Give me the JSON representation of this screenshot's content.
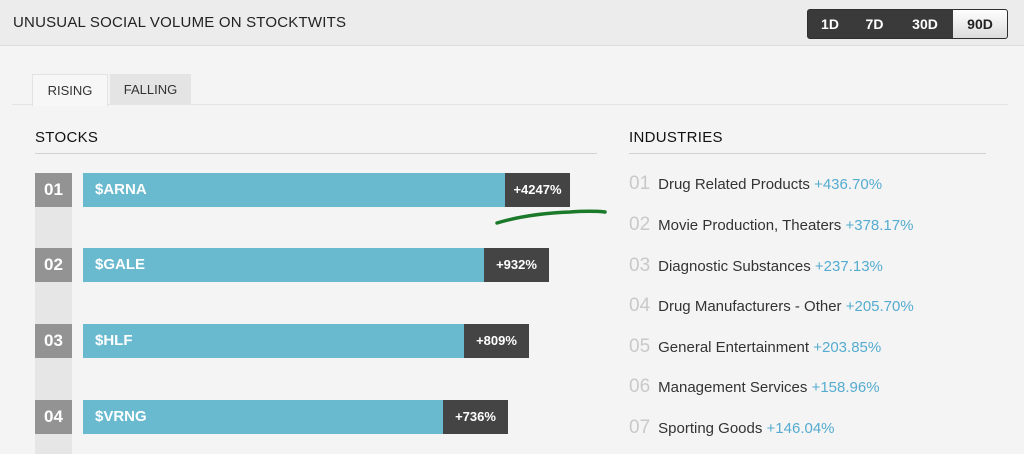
{
  "header": {
    "title": "UNUSUAL SOCIAL VOLUME ON STOCKTWITS",
    "ranges": [
      "1D",
      "7D",
      "30D",
      "90D"
    ],
    "selected_range": "90D"
  },
  "tabs": [
    "RISING",
    "FALLING"
  ],
  "active_tab": "RISING",
  "stocks": {
    "title": "STOCKS",
    "items": [
      {
        "rank": "01",
        "symbol": "$ARNA",
        "change": "+4247%",
        "bar_fraction": 1.0
      },
      {
        "rank": "02",
        "symbol": "$GALE",
        "change": "+932%",
        "bar_fraction": 0.95
      },
      {
        "rank": "03",
        "symbol": "$HLF",
        "change": "+809%",
        "bar_fraction": 0.91
      },
      {
        "rank": "04",
        "symbol": "$VRNG",
        "change": "+736%",
        "bar_fraction": 0.87
      }
    ]
  },
  "industries": {
    "title": "INDUSTRIES",
    "items": [
      {
        "rank": "01",
        "name": "Drug Related Products",
        "change": "+436.70%"
      },
      {
        "rank": "02",
        "name": "Movie Production, Theaters",
        "change": "+378.17%"
      },
      {
        "rank": "03",
        "name": "Diagnostic Substances",
        "change": "+237.13%"
      },
      {
        "rank": "04",
        "name": "Drug Manufacturers - Other",
        "change": "+205.70%"
      },
      {
        "rank": "05",
        "name": "General Entertainment",
        "change": "+203.85%"
      },
      {
        "rank": "06",
        "name": "Management Services",
        "change": "+158.96%"
      },
      {
        "rank": "07",
        "name": "Sporting Goods",
        "change": "+146.04%"
      }
    ]
  },
  "colors": {
    "bar": "#69b9cf",
    "pct_box": "#444444",
    "change_text": "#55acd0",
    "annotation": "#1a7a2a"
  }
}
